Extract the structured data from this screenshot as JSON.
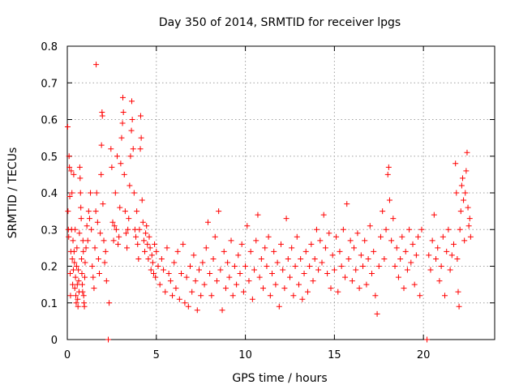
{
  "chart_data": {
    "type": "scatter",
    "title": "Day 350 of 2014, SRMTID for receiver lpgs",
    "xlabel": "GPS time / hours",
    "ylabel": "SRMTID / TECUs",
    "xlim": [
      0,
      24
    ],
    "ylim": [
      0,
      0.8
    ],
    "xticks": [
      0,
      5,
      10,
      15,
      20
    ],
    "xtick_labels": [
      "0",
      "5",
      "10",
      "15",
      "20"
    ],
    "yticks": [
      0,
      0.1,
      0.2,
      0.3,
      0.4,
      0.5,
      0.6,
      0.7,
      0.8
    ],
    "ytick_labels": [
      "0",
      "0.1",
      "0.2",
      "0.3",
      "0.4",
      "0.5",
      "0.6",
      "0.7",
      "0.8"
    ],
    "grid": true,
    "marker": "+",
    "marker_color": "#ff0000",
    "legend": "none",
    "series": [
      {
        "name": "SRMTID",
        "points": [
          [
            0.02,
            0.58
          ],
          [
            0.04,
            0.35
          ],
          [
            0.06,
            0.3
          ],
          [
            0.08,
            0.28
          ],
          [
            0.1,
            0.5
          ],
          [
            0.12,
            0.47
          ],
          [
            0.14,
            0.39
          ],
          [
            0.16,
            0.18
          ],
          [
            0.18,
            0.12
          ],
          [
            0.2,
            0.24
          ],
          [
            0.22,
            0.46
          ],
          [
            0.24,
            0.3
          ],
          [
            0.26,
            0.4
          ],
          [
            0.28,
            0.22
          ],
          [
            0.3,
            0.15
          ],
          [
            0.32,
            0.27
          ],
          [
            0.34,
            0.19
          ],
          [
            0.36,
            0.45
          ],
          [
            0.38,
            0.24
          ],
          [
            0.4,
            0.21
          ],
          [
            0.42,
            0.14
          ],
          [
            0.44,
            0.3
          ],
          [
            0.46,
            0.17
          ],
          [
            0.48,
            0.12
          ],
          [
            0.5,
            0.1
          ],
          [
            0.52,
            0.2
          ],
          [
            0.54,
            0.25
          ],
          [
            0.56,
            0.15
          ],
          [
            0.58,
            0.11
          ],
          [
            0.6,
            0.09
          ],
          [
            0.62,
            0.19
          ],
          [
            0.64,
            0.16
          ],
          [
            0.66,
            0.13
          ],
          [
            0.68,
            0.29
          ],
          [
            0.7,
            0.47
          ],
          [
            0.72,
            0.44
          ],
          [
            0.74,
            0.4
          ],
          [
            0.76,
            0.36
          ],
          [
            0.78,
            0.33
          ],
          [
            0.8,
            0.22
          ],
          [
            0.82,
            0.18
          ],
          [
            0.84,
            0.15
          ],
          [
            0.86,
            0.13
          ],
          [
            0.88,
            0.27
          ],
          [
            0.9,
            0.24
          ],
          [
            0.92,
            0.12
          ],
          [
            0.94,
            0.1
          ],
          [
            0.96,
            0.09
          ],
          [
            0.98,
            0.17
          ],
          [
            1.0,
            0.21
          ],
          [
            1.05,
            0.25
          ],
          [
            1.1,
            0.31
          ],
          [
            1.15,
            0.27
          ],
          [
            1.2,
            0.35
          ],
          [
            1.25,
            0.33
          ],
          [
            1.3,
            0.4
          ],
          [
            1.35,
            0.3
          ],
          [
            1.4,
            0.2
          ],
          [
            1.45,
            0.17
          ],
          [
            1.5,
            0.14
          ],
          [
            1.55,
            0.25
          ],
          [
            1.6,
            0.35
          ],
          [
            1.62,
            0.75
          ],
          [
            1.65,
            0.4
          ],
          [
            1.7,
            0.32
          ],
          [
            1.75,
            0.22
          ],
          [
            1.8,
            0.18
          ],
          [
            1.85,
            0.29
          ],
          [
            1.9,
            0.45
          ],
          [
            1.92,
            0.53
          ],
          [
            1.95,
            0.62
          ],
          [
            1.97,
            0.61
          ],
          [
            2.0,
            0.37
          ],
          [
            2.05,
            0.27
          ],
          [
            2.1,
            0.21
          ],
          [
            2.15,
            0.24
          ],
          [
            2.2,
            0.16
          ],
          [
            2.3,
            0.0
          ],
          [
            2.35,
            0.1
          ],
          [
            2.45,
            0.52
          ],
          [
            2.5,
            0.47
          ],
          [
            2.55,
            0.32
          ],
          [
            2.6,
            0.27
          ],
          [
            2.65,
            0.31
          ],
          [
            2.7,
            0.4
          ],
          [
            2.75,
            0.3
          ],
          [
            2.8,
            0.5
          ],
          [
            2.85,
            0.26
          ],
          [
            2.9,
            0.28
          ],
          [
            2.95,
            0.36
          ],
          [
            3.0,
            0.48
          ],
          [
            3.05,
            0.55
          ],
          [
            3.1,
            0.59
          ],
          [
            3.12,
            0.66
          ],
          [
            3.15,
            0.62
          ],
          [
            3.2,
            0.45
          ],
          [
            3.25,
            0.35
          ],
          [
            3.3,
            0.29
          ],
          [
            3.35,
            0.25
          ],
          [
            3.4,
            0.3
          ],
          [
            3.45,
            0.33
          ],
          [
            3.5,
            0.42
          ],
          [
            3.55,
            0.5
          ],
          [
            3.6,
            0.57
          ],
          [
            3.62,
            0.65
          ],
          [
            3.65,
            0.6
          ],
          [
            3.7,
            0.52
          ],
          [
            3.75,
            0.4
          ],
          [
            3.8,
            0.3
          ],
          [
            3.85,
            0.28
          ],
          [
            3.9,
            0.35
          ],
          [
            3.95,
            0.26
          ],
          [
            4.0,
            0.22
          ],
          [
            4.05,
            0.3
          ],
          [
            4.1,
            0.52
          ],
          [
            4.12,
            0.61
          ],
          [
            4.15,
            0.55
          ],
          [
            4.2,
            0.38
          ],
          [
            4.25,
            0.32
          ],
          [
            4.3,
            0.27
          ],
          [
            4.35,
            0.24
          ],
          [
            4.4,
            0.29
          ],
          [
            4.45,
            0.31
          ],
          [
            4.5,
            0.26
          ],
          [
            4.55,
            0.22
          ],
          [
            4.6,
            0.28
          ],
          [
            4.65,
            0.25
          ],
          [
            4.7,
            0.19
          ],
          [
            4.75,
            0.23
          ],
          [
            4.8,
            0.21
          ],
          [
            4.85,
            0.18
          ],
          [
            4.9,
            0.26
          ],
          [
            4.95,
            0.17
          ],
          [
            5.0,
            0.24
          ],
          [
            5.1,
            0.2
          ],
          [
            5.2,
            0.15
          ],
          [
            5.3,
            0.22
          ],
          [
            5.4,
            0.19
          ],
          [
            5.5,
            0.13
          ],
          [
            5.6,
            0.25
          ],
          [
            5.7,
            0.18
          ],
          [
            5.8,
            0.16
          ],
          [
            5.9,
            0.12
          ],
          [
            6.0,
            0.21
          ],
          [
            6.1,
            0.14
          ],
          [
            6.2,
            0.24
          ],
          [
            6.3,
            0.11
          ],
          [
            6.4,
            0.18
          ],
          [
            6.5,
            0.26
          ],
          [
            6.6,
            0.1
          ],
          [
            6.7,
            0.17
          ],
          [
            6.8,
            0.09
          ],
          [
            6.9,
            0.2
          ],
          [
            7.0,
            0.13
          ],
          [
            7.1,
            0.23
          ],
          [
            7.2,
            0.16
          ],
          [
            7.3,
            0.08
          ],
          [
            7.4,
            0.19
          ],
          [
            7.5,
            0.12
          ],
          [
            7.6,
            0.21
          ],
          [
            7.7,
            0.15
          ],
          [
            7.8,
            0.25
          ],
          [
            7.9,
            0.32
          ],
          [
            8.0,
            0.18
          ],
          [
            8.1,
            0.12
          ],
          [
            8.2,
            0.22
          ],
          [
            8.3,
            0.28
          ],
          [
            8.4,
            0.16
          ],
          [
            8.5,
            0.35
          ],
          [
            8.6,
            0.19
          ],
          [
            8.7,
            0.08
          ],
          [
            8.8,
            0.24
          ],
          [
            8.9,
            0.14
          ],
          [
            9.0,
            0.21
          ],
          [
            9.1,
            0.17
          ],
          [
            9.2,
            0.27
          ],
          [
            9.3,
            0.12
          ],
          [
            9.4,
            0.2
          ],
          [
            9.5,
            0.15
          ],
          [
            9.6,
            0.23
          ],
          [
            9.7,
            0.18
          ],
          [
            9.8,
            0.26
          ],
          [
            9.9,
            0.13
          ],
          [
            10.0,
            0.2
          ],
          [
            10.1,
            0.31
          ],
          [
            10.2,
            0.16
          ],
          [
            10.3,
            0.24
          ],
          [
            10.4,
            0.11
          ],
          [
            10.5,
            0.19
          ],
          [
            10.6,
            0.27
          ],
          [
            10.7,
            0.34
          ],
          [
            10.8,
            0.17
          ],
          [
            10.9,
            0.22
          ],
          [
            11.0,
            0.14
          ],
          [
            11.1,
            0.25
          ],
          [
            11.2,
            0.2
          ],
          [
            11.3,
            0.28
          ],
          [
            11.4,
            0.12
          ],
          [
            11.5,
            0.18
          ],
          [
            11.6,
            0.24
          ],
          [
            11.7,
            0.15
          ],
          [
            11.8,
            0.21
          ],
          [
            11.9,
            0.09
          ],
          [
            12.0,
            0.26
          ],
          [
            12.1,
            0.19
          ],
          [
            12.2,
            0.14
          ],
          [
            12.3,
            0.33
          ],
          [
            12.4,
            0.22
          ],
          [
            12.5,
            0.17
          ],
          [
            12.6,
            0.25
          ],
          [
            12.7,
            0.12
          ],
          [
            12.8,
            0.2
          ],
          [
            12.9,
            0.28
          ],
          [
            13.0,
            0.15
          ],
          [
            13.1,
            0.22
          ],
          [
            13.2,
            0.11
          ],
          [
            13.3,
            0.18
          ],
          [
            13.4,
            0.24
          ],
          [
            13.5,
            0.13
          ],
          [
            13.6,
            0.2
          ],
          [
            13.7,
            0.26
          ],
          [
            13.8,
            0.16
          ],
          [
            13.9,
            0.22
          ],
          [
            14.0,
            0.3
          ],
          [
            14.1,
            0.19
          ],
          [
            14.2,
            0.27
          ],
          [
            14.3,
            0.21
          ],
          [
            14.4,
            0.34
          ],
          [
            14.5,
            0.25
          ],
          [
            14.6,
            0.18
          ],
          [
            14.7,
            0.29
          ],
          [
            14.8,
            0.14
          ],
          [
            14.9,
            0.23
          ],
          [
            15.0,
            0.19
          ],
          [
            15.1,
            0.28
          ],
          [
            15.2,
            0.13
          ],
          [
            15.3,
            0.24
          ],
          [
            15.4,
            0.2
          ],
          [
            15.5,
            0.3
          ],
          [
            15.6,
            0.17
          ],
          [
            15.7,
            0.37
          ],
          [
            15.8,
            0.22
          ],
          [
            15.9,
            0.27
          ],
          [
            16.0,
            0.16
          ],
          [
            16.1,
            0.25
          ],
          [
            16.2,
            0.19
          ],
          [
            16.3,
            0.29
          ],
          [
            16.4,
            0.14
          ],
          [
            16.5,
            0.23
          ],
          [
            16.6,
            0.2
          ],
          [
            16.7,
            0.27
          ],
          [
            16.8,
            0.15
          ],
          [
            16.9,
            0.22
          ],
          [
            17.0,
            0.31
          ],
          [
            17.1,
            0.18
          ],
          [
            17.2,
            0.24
          ],
          [
            17.3,
            0.12
          ],
          [
            17.4,
            0.07
          ],
          [
            17.5,
            0.2
          ],
          [
            17.6,
            0.28
          ],
          [
            17.7,
            0.35
          ],
          [
            17.8,
            0.22
          ],
          [
            17.9,
            0.3
          ],
          [
            18.0,
            0.45
          ],
          [
            18.05,
            0.47
          ],
          [
            18.1,
            0.38
          ],
          [
            18.2,
            0.27
          ],
          [
            18.3,
            0.33
          ],
          [
            18.4,
            0.2
          ],
          [
            18.5,
            0.25
          ],
          [
            18.6,
            0.17
          ],
          [
            18.7,
            0.22
          ],
          [
            18.8,
            0.28
          ],
          [
            18.9,
            0.14
          ],
          [
            19.0,
            0.24
          ],
          [
            19.1,
            0.19
          ],
          [
            19.2,
            0.3
          ],
          [
            19.3,
            0.21
          ],
          [
            19.4,
            0.26
          ],
          [
            19.5,
            0.15
          ],
          [
            19.6,
            0.23
          ],
          [
            19.7,
            0.28
          ],
          [
            19.8,
            0.12
          ],
          [
            19.9,
            0.3
          ],
          [
            20.2,
            0.0
          ],
          [
            20.3,
            0.23
          ],
          [
            20.4,
            0.19
          ],
          [
            20.5,
            0.27
          ],
          [
            20.6,
            0.34
          ],
          [
            20.7,
            0.22
          ],
          [
            20.8,
            0.25
          ],
          [
            20.9,
            0.16
          ],
          [
            21.0,
            0.2
          ],
          [
            21.1,
            0.28
          ],
          [
            21.2,
            0.12
          ],
          [
            21.3,
            0.24
          ],
          [
            21.4,
            0.3
          ],
          [
            21.5,
            0.19
          ],
          [
            21.6,
            0.23
          ],
          [
            21.7,
            0.26
          ],
          [
            21.8,
            0.48
          ],
          [
            21.85,
            0.4
          ],
          [
            21.9,
            0.22
          ],
          [
            21.95,
            0.13
          ],
          [
            22.0,
            0.09
          ],
          [
            22.05,
            0.3
          ],
          [
            22.1,
            0.35
          ],
          [
            22.15,
            0.42
          ],
          [
            22.2,
            0.44
          ],
          [
            22.25,
            0.38
          ],
          [
            22.3,
            0.27
          ],
          [
            22.35,
            0.4
          ],
          [
            22.4,
            0.46
          ],
          [
            22.45,
            0.51
          ],
          [
            22.5,
            0.36
          ],
          [
            22.55,
            0.31
          ],
          [
            22.6,
            0.33
          ],
          [
            22.65,
            0.28
          ]
        ]
      }
    ]
  }
}
